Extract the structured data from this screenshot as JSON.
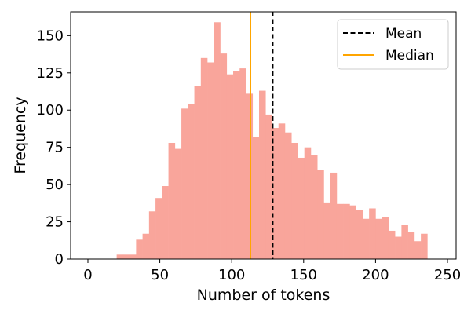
{
  "chart_data": {
    "type": "bar",
    "title": "",
    "xlabel": "Number of tokens",
    "ylabel": "Frequency",
    "xlim": [
      -12,
      256
    ],
    "ylim": [
      0,
      166
    ],
    "xticks": [
      0,
      50,
      100,
      150,
      200,
      250
    ],
    "yticks": [
      0,
      25,
      50,
      75,
      100,
      125,
      150
    ],
    "bin_start": 20,
    "bin_width": 4.5,
    "values": [
      3,
      3,
      3,
      13,
      17,
      32,
      41,
      49,
      78,
      74,
      101,
      104,
      116,
      135,
      132,
      159,
      138,
      124,
      126,
      128,
      111,
      82,
      113,
      97,
      88,
      91,
      85,
      78,
      68,
      75,
      70,
      60,
      38,
      58,
      37,
      37,
      36,
      33,
      27,
      34,
      27,
      28,
      19,
      15,
      23,
      18,
      12,
      17
    ],
    "bar_color": "#f9a59b",
    "mean": 128.5,
    "median": 113,
    "mean_color": "#000000",
    "median_color": "#ffa500",
    "legend": {
      "position": "top-right",
      "entries": [
        {
          "label": "Mean",
          "style": "dashed",
          "color": "#000000"
        },
        {
          "label": "Median",
          "style": "solid",
          "color": "#ffa500"
        }
      ]
    },
    "grid": false
  }
}
